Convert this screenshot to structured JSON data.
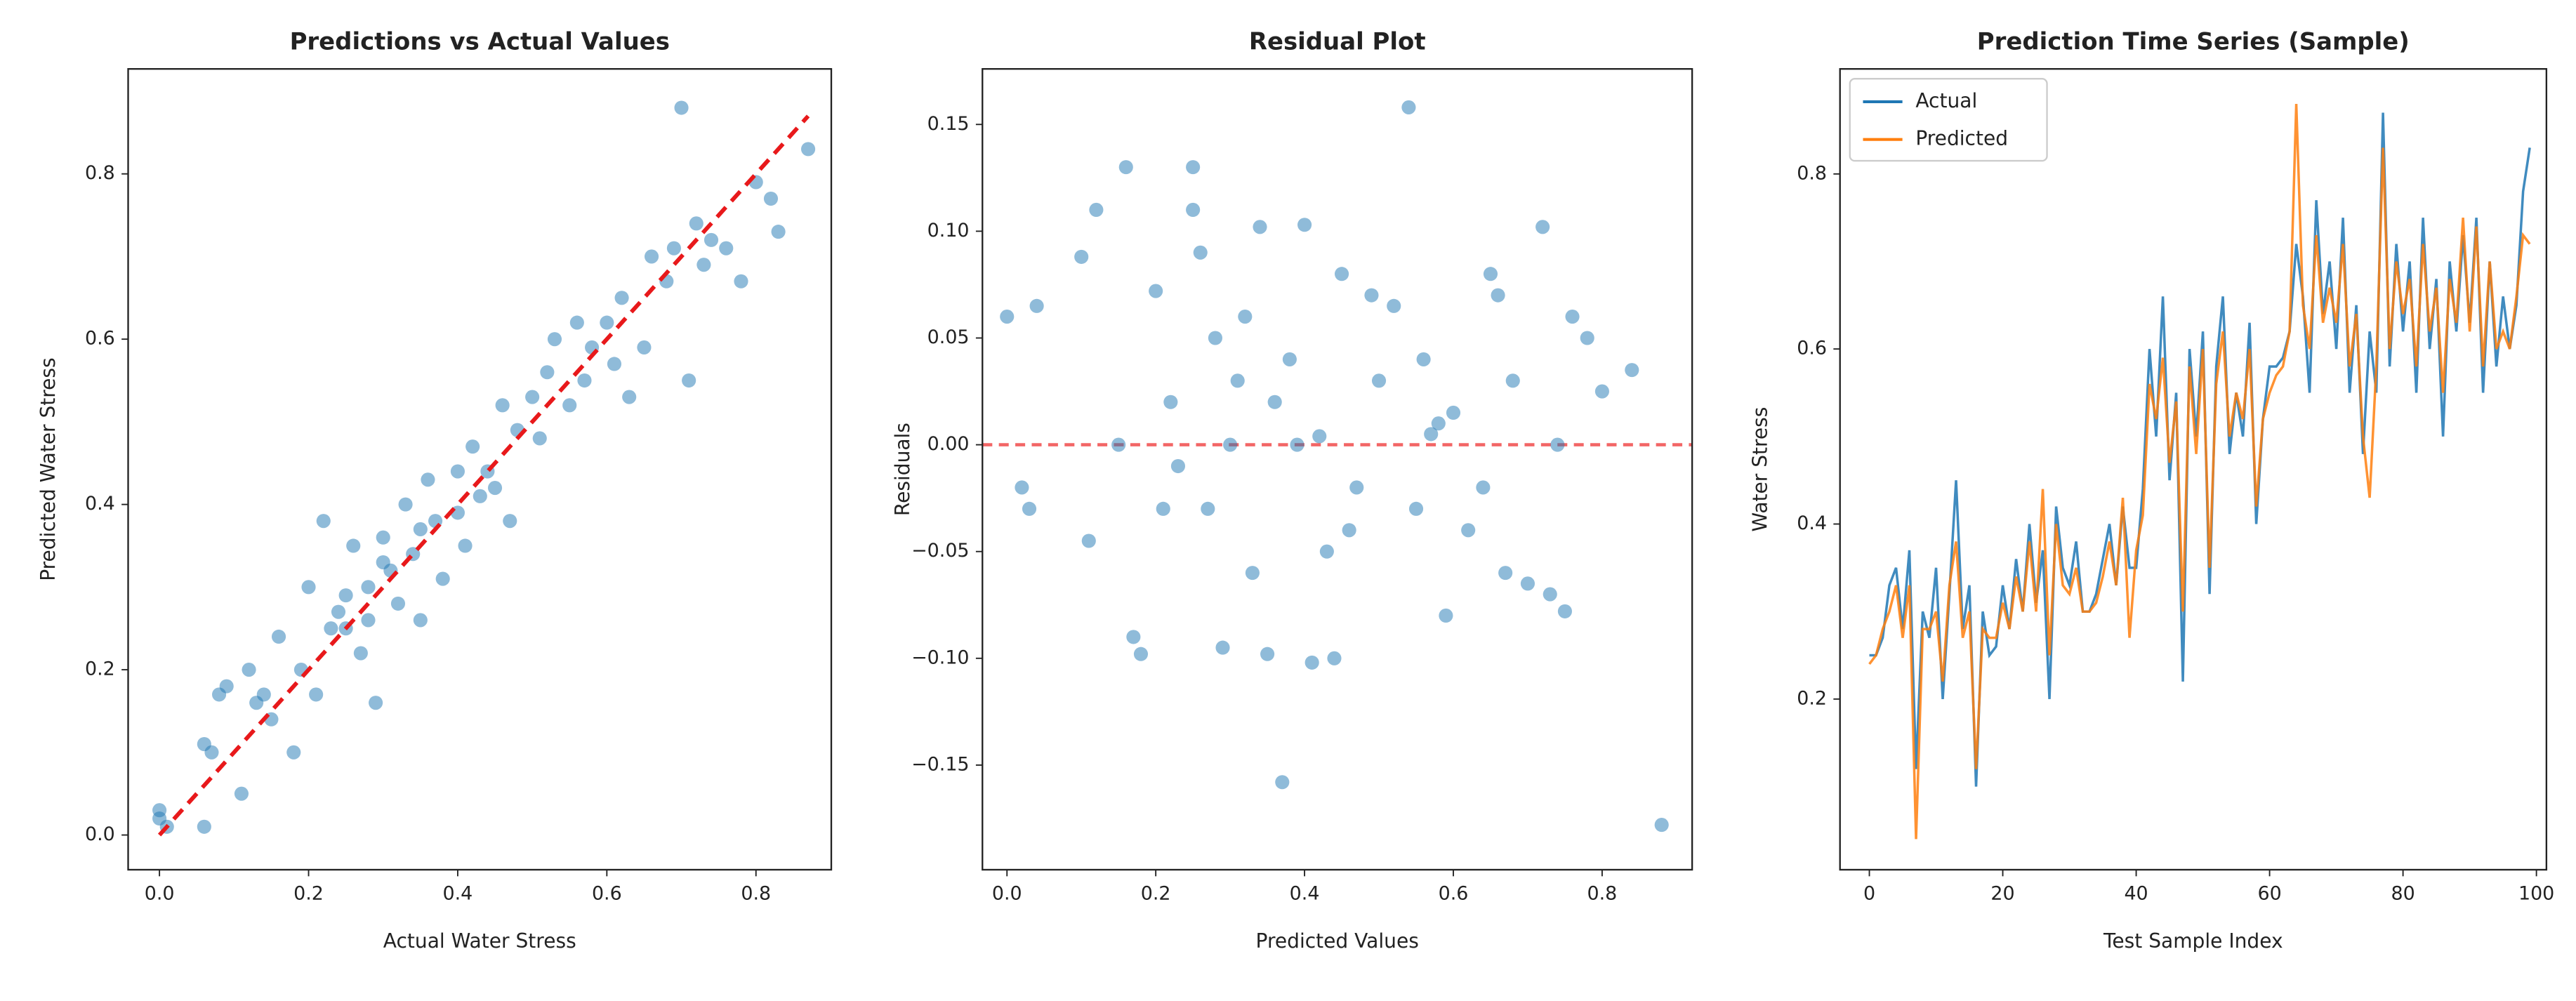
{
  "chart_data": [
    {
      "type": "scatter",
      "title": "Predictions vs Actual Values",
      "x_label": "Actual Water Stress",
      "y_label": "Predicted Water Stress",
      "color": "#1f77b4",
      "x": [
        0,
        0,
        0.01,
        0.06,
        0.07,
        0.06,
        0.08,
        0.09,
        0.11,
        0.12,
        0.13,
        0.14,
        0.15,
        0.16,
        0.18,
        0.19,
        0.2,
        0.21,
        0.22,
        0.23,
        0.24,
        0.25,
        0.26,
        0.27,
        0.28,
        0.29,
        0.3,
        0.31,
        0.32,
        0.33,
        0.34,
        0.35,
        0.36,
        0.37,
        0.38,
        0.4,
        0.41,
        0.42,
        0.43,
        0.45,
        0.46,
        0.47,
        0.48,
        0.5,
        0.51,
        0.52,
        0.53,
        0.55,
        0.56,
        0.57,
        0.58,
        0.6,
        0.61,
        0.62,
        0.63,
        0.65,
        0.66,
        0.68,
        0.69,
        0.7,
        0.71,
        0.72,
        0.73,
        0.74,
        0.76,
        0.78,
        0.8,
        0.82,
        0.83,
        0.87,
        0.25,
        0.3,
        0.35,
        0.4,
        0.28,
        0.44
      ],
      "values": [
        0.02,
        0.03,
        0.01,
        0.11,
        0.1,
        0.01,
        0.17,
        0.18,
        0.05,
        0.2,
        0.16,
        0.17,
        0.14,
        0.24,
        0.1,
        0.2,
        0.3,
        0.17,
        0.38,
        0.25,
        0.27,
        0.29,
        0.35,
        0.22,
        0.3,
        0.16,
        0.36,
        0.32,
        0.28,
        0.4,
        0.34,
        0.26,
        0.43,
        0.38,
        0.31,
        0.44,
        0.35,
        0.47,
        0.41,
        0.42,
        0.52,
        0.38,
        0.49,
        0.53,
        0.48,
        0.56,
        0.6,
        0.52,
        0.62,
        0.55,
        0.59,
        0.62,
        0.57,
        0.65,
        0.53,
        0.59,
        0.7,
        0.67,
        0.71,
        0.88,
        0.55,
        0.74,
        0.69,
        0.72,
        0.71,
        0.67,
        0.79,
        0.77,
        0.73,
        0.83,
        0.25,
        0.33,
        0.37,
        0.39,
        0.26,
        0.44
      ],
      "reference_line": {
        "x": [
          0,
          0.87
        ],
        "values": [
          0,
          0.87
        ],
        "color": "#e8191b"
      },
      "xlim": [
        -0.042,
        0.901
      ],
      "ylim": [
        -0.042,
        0.927
      ],
      "xticks": [
        {
          "value": 0,
          "label": "0.0"
        },
        0.2,
        0.4,
        0.6,
        0.8
      ],
      "yticks": [
        {
          "value": 0,
          "label": "0.0"
        },
        0.2,
        0.4,
        0.6,
        0.8
      ]
    },
    {
      "type": "scatter",
      "title": "Residual Plot",
      "x_label": "Predicted Values",
      "y_label": "Residuals",
      "color": "#1f77b4",
      "x": [
        0,
        0.02,
        0.03,
        0.04,
        0.1,
        0.12,
        0.11,
        0.16,
        0.17,
        0.18,
        0.2,
        0.21,
        0.22,
        0.25,
        0.25,
        0.26,
        0.27,
        0.28,
        0.29,
        0.3,
        0.32,
        0.33,
        0.34,
        0.35,
        0.36,
        0.37,
        0.38,
        0.4,
        0.41,
        0.42,
        0.43,
        0.44,
        0.45,
        0.47,
        0.49,
        0.5,
        0.52,
        0.54,
        0.55,
        0.56,
        0.58,
        0.59,
        0.6,
        0.62,
        0.65,
        0.66,
        0.67,
        0.68,
        0.7,
        0.72,
        0.73,
        0.74,
        0.75,
        0.76,
        0.78,
        0.8,
        0.84,
        0.88,
        0.15,
        0.23,
        0.31,
        0.39,
        0.46,
        0.57,
        0.64
      ],
      "values": [
        0.06,
        -0.02,
        -0.03,
        0.065,
        0.088,
        0.11,
        -0.045,
        0.13,
        -0.09,
        -0.098,
        0.072,
        -0.03,
        0.02,
        0.13,
        0.11,
        0.09,
        -0.03,
        0.05,
        -0.095,
        0,
        0.06,
        -0.06,
        0.102,
        -0.098,
        0.02,
        -0.158,
        0.04,
        0.103,
        -0.102,
        0.004,
        -0.05,
        -0.1,
        0.08,
        -0.02,
        0.07,
        0.03,
        0.065,
        0.158,
        -0.03,
        0.04,
        0.01,
        -0.08,
        0.015,
        -0.04,
        0.08,
        0.07,
        -0.06,
        0.03,
        -0.065,
        0.102,
        -0.07,
        0,
        -0.078,
        0.06,
        0.05,
        0.025,
        0.035,
        -0.178,
        0,
        -0.01,
        0.03,
        0,
        -0.04,
        0.005,
        -0.02
      ],
      "reference_hline": {
        "value": 0,
        "color": "#f04040"
      },
      "xlim": [
        -0.033,
        0.921
      ],
      "ylim": [
        -0.199,
        0.176
      ],
      "xticks": [
        {
          "value": 0,
          "label": "0.0"
        },
        0.2,
        0.4,
        0.6,
        0.8
      ],
      "yticks": [
        {
          "value": -0.15,
          "label": "−0.15"
        },
        {
          "value": -0.1,
          "label": "−0.10"
        },
        {
          "value": -0.05,
          "label": "−0.05"
        },
        {
          "value": 0,
          "label": "0.00"
        },
        0.05,
        {
          "value": 0.1,
          "label": "0.10"
        },
        0.15
      ]
    },
    {
      "type": "line",
      "title": "Prediction Time Series (Sample)",
      "x_label": "Test Sample Index",
      "y_label": "Water Stress",
      "legend": "upper left",
      "x": [
        0,
        1,
        2,
        3,
        4,
        5,
        6,
        7,
        8,
        9,
        10,
        11,
        12,
        13,
        14,
        15,
        16,
        17,
        18,
        19,
        20,
        21,
        22,
        23,
        24,
        25,
        26,
        27,
        28,
        29,
        30,
        31,
        32,
        33,
        34,
        35,
        36,
        37,
        38,
        39,
        40,
        41,
        42,
        43,
        44,
        45,
        46,
        47,
        48,
        49,
        50,
        51,
        52,
        53,
        54,
        55,
        56,
        57,
        58,
        59,
        60,
        61,
        62,
        63,
        64,
        65,
        66,
        67,
        68,
        69,
        70,
        71,
        72,
        73,
        74,
        75,
        76,
        77,
        78,
        79,
        80,
        81,
        82,
        83,
        84,
        85,
        86,
        87,
        88,
        89,
        90,
        91,
        92,
        93,
        94,
        95,
        96,
        97,
        98,
        99
      ],
      "series": [
        {
          "name": "Actual",
          "color": "#1f77b4",
          "values": [
            0.25,
            0.25,
            0.27,
            0.33,
            0.35,
            0.28,
            0.37,
            0.12,
            0.3,
            0.27,
            0.35,
            0.2,
            0.32,
            0.45,
            0.28,
            0.33,
            0.1,
            0.3,
            0.25,
            0.26,
            0.33,
            0.28,
            0.36,
            0.3,
            0.4,
            0.31,
            0.37,
            0.2,
            0.42,
            0.35,
            0.33,
            0.38,
            0.3,
            0.3,
            0.32,
            0.36,
            0.4,
            0.33,
            0.42,
            0.35,
            0.35,
            0.44,
            0.6,
            0.5,
            0.66,
            0.45,
            0.55,
            0.22,
            0.6,
            0.5,
            0.62,
            0.32,
            0.58,
            0.66,
            0.48,
            0.55,
            0.5,
            0.63,
            0.4,
            0.52,
            0.58,
            0.58,
            0.59,
            0.62,
            0.72,
            0.66,
            0.55,
            0.77,
            0.64,
            0.7,
            0.6,
            0.75,
            0.55,
            0.65,
            0.48,
            0.62,
            0.55,
            0.87,
            0.58,
            0.72,
            0.62,
            0.7,
            0.55,
            0.75,
            0.6,
            0.68,
            0.5,
            0.7,
            0.62,
            0.73,
            0.63,
            0.75,
            0.55,
            0.7,
            0.58,
            0.66,
            0.6,
            0.65,
            0.78,
            0.83
          ]
        },
        {
          "name": "Predicted",
          "color": "#ff7f0e",
          "values": [
            0.24,
            0.25,
            0.28,
            0.3,
            0.33,
            0.27,
            0.33,
            0.04,
            0.28,
            0.28,
            0.3,
            0.22,
            0.33,
            0.38,
            0.27,
            0.3,
            0.12,
            0.28,
            0.27,
            0.27,
            0.31,
            0.28,
            0.34,
            0.3,
            0.38,
            0.3,
            0.44,
            0.25,
            0.4,
            0.33,
            0.32,
            0.35,
            0.3,
            0.3,
            0.31,
            0.34,
            0.38,
            0.33,
            0.43,
            0.27,
            0.37,
            0.41,
            0.56,
            0.52,
            0.59,
            0.47,
            0.54,
            0.3,
            0.58,
            0.48,
            0.6,
            0.35,
            0.56,
            0.62,
            0.5,
            0.55,
            0.52,
            0.6,
            0.42,
            0.52,
            0.55,
            0.57,
            0.58,
            0.62,
            0.88,
            0.65,
            0.6,
            0.73,
            0.63,
            0.67,
            0.63,
            0.72,
            0.58,
            0.64,
            0.5,
            0.43,
            0.58,
            0.83,
            0.6,
            0.7,
            0.64,
            0.68,
            0.58,
            0.72,
            0.62,
            0.67,
            0.55,
            0.68,
            0.63,
            0.75,
            0.62,
            0.74,
            0.58,
            0.7,
            0.6,
            0.62,
            0.6,
            0.66,
            0.73,
            0.72
          ]
        }
      ],
      "xlim": [
        -4.4,
        101.5
      ],
      "ylim": [
        0.005,
        0.92
      ],
      "xticks": [
        0,
        20,
        40,
        60,
        80,
        100
      ],
      "yticks": [
        0.2,
        0.4,
        0.6,
        0.8
      ]
    }
  ]
}
